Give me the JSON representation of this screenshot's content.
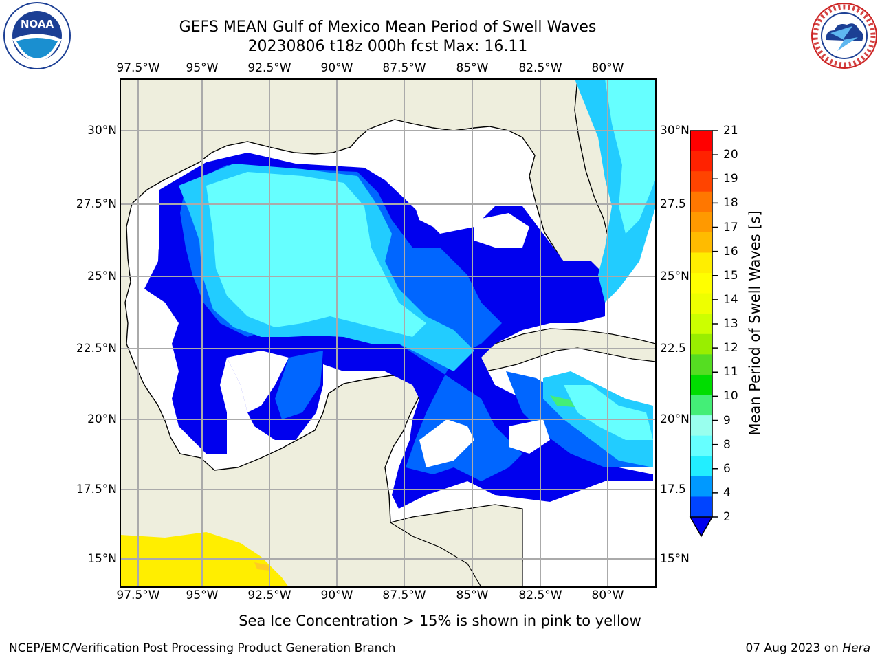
{
  "title": {
    "line1": "GEFS MEAN Gulf of Mexico Mean Period of Swell Waves",
    "line2": "20230806 t18z 000h fcst   Max: 16.11"
  },
  "logos": {
    "left": "NOAA",
    "left_ring": "NATIONAL OCEANIC AND ATMOSPHERIC ADMINISTRATION · U.S. DEPARTMENT OF COMMERCE",
    "right_ring": "NATIONAL WEATHER SERVICE"
  },
  "map": {
    "lon_labels": [
      "97.5°W",
      "95°W",
      "92.5°W",
      "90°W",
      "87.5°W",
      "85°W",
      "82.5°W",
      "80°W"
    ],
    "lat_labels": [
      "30°N",
      "27.5°N",
      "25°N",
      "22.5°N",
      "20°N",
      "17.5°N",
      "15°N"
    ],
    "lat_labels_right": [
      "30°N",
      "27.5",
      "25°N",
      "22.5",
      "20°N",
      "17.5",
      "15°N"
    ],
    "land_color": "#eeeedd",
    "ocean_color": "#ffffff",
    "grid": true
  },
  "colorbar": {
    "label": "Mean Period of Swell Waves [s]",
    "ticks": [
      "21",
      "20",
      "19",
      "18",
      "17",
      "16",
      "15",
      "14",
      "13",
      "12",
      "11",
      "10",
      "9",
      "8",
      "6",
      "4",
      "2"
    ],
    "colors": [
      "#ff0000",
      "#ff2200",
      "#ff4400",
      "#ff7700",
      "#ff9900",
      "#ffbb00",
      "#ffee00",
      "#ffff00",
      "#eeff00",
      "#ccff00",
      "#99ee00",
      "#55dd22",
      "#00dd00",
      "#44ee77",
      "#99ffee",
      "#66ffff",
      "#22eeff",
      "#0099ff",
      "#0044ff"
    ],
    "extend_color": "#0000ee"
  },
  "footnote": "Sea Ice Concentration > 15% is shown in pink to yellow",
  "credit": "NCEP/EMC/Verification Post Processing Product Generation Branch",
  "date_text": "07 Aug 2023 on ",
  "date_host": "Hera"
}
